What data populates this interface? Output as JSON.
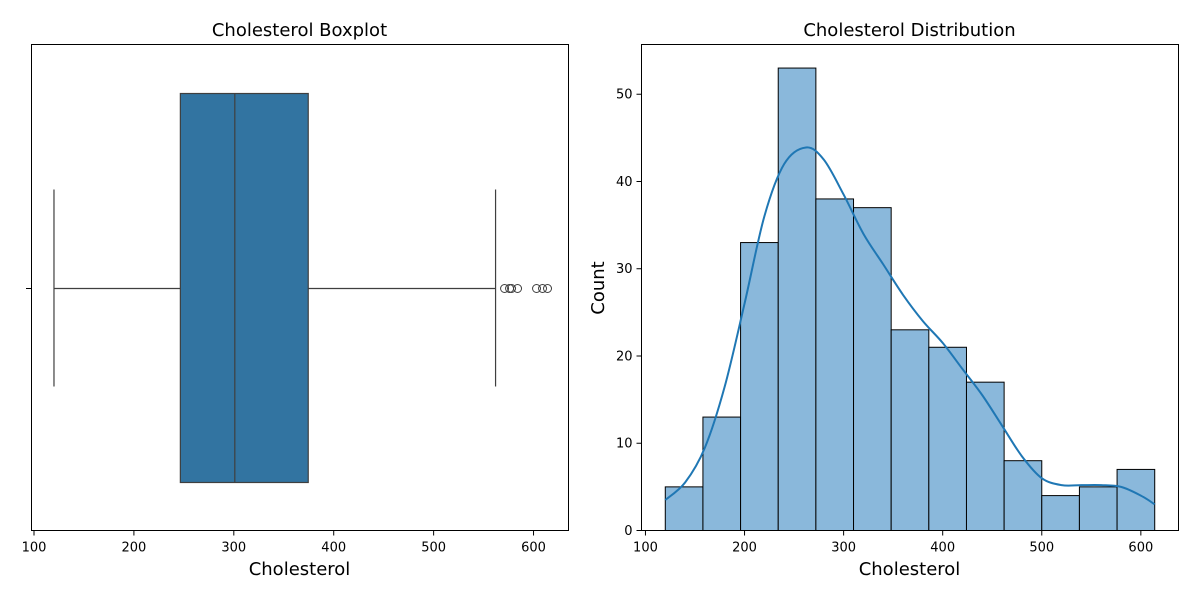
{
  "chart_data": [
    {
      "type": "box",
      "title": "Cholesterol Boxplot",
      "xlabel": "Cholesterol",
      "ylabel": "",
      "xlim": [
        97.5,
        635
      ],
      "xticks": [
        100,
        200,
        300,
        400,
        500,
        600
      ],
      "box": {
        "whisker_low": 120,
        "q1": 246.5,
        "median": 301,
        "q3": 374.5,
        "whisker_high": 562
      },
      "outliers": [
        571,
        576,
        578,
        584,
        603,
        609,
        614
      ],
      "colors": {
        "box": "#3274a1",
        "line": "#3f3f3f"
      },
      "grid": false
    },
    {
      "type": "histogram",
      "title": "Cholesterol Distribution",
      "xlabel": "Cholesterol",
      "ylabel": "Count",
      "xlim": [
        96,
        638
      ],
      "ylim": [
        0,
        55.7
      ],
      "xticks": [
        100,
        200,
        300,
        400,
        500,
        600
      ],
      "yticks": [
        0,
        10,
        20,
        30,
        40,
        50
      ],
      "bin_edges": [
        120,
        158,
        196,
        234,
        272,
        310,
        348,
        386,
        424,
        462,
        500,
        538,
        576,
        614
      ],
      "counts": [
        5,
        13,
        33,
        53,
        38,
        37,
        23,
        21,
        17,
        8,
        4,
        5,
        7
      ],
      "kde": {
        "x": [
          120,
          140,
          160,
          180,
          200,
          220,
          240,
          262,
          280,
          300,
          320,
          340,
          360,
          380,
          400,
          420,
          440,
          460,
          480,
          500,
          520,
          540,
          560,
          580,
          600,
          614
        ],
        "y": [
          3.5,
          5.5,
          9.5,
          16.5,
          26,
          36,
          42,
          43.9,
          42.5,
          38.5,
          34,
          30.5,
          27,
          24,
          21.5,
          18.5,
          15.5,
          12,
          8.5,
          6,
          5.2,
          5.2,
          5.2,
          5.0,
          4.0,
          3.0
        ]
      },
      "colors": {
        "bar": "#8ab8db",
        "edge": "#000000",
        "kde": "#1f77b4"
      },
      "grid": false
    }
  ]
}
